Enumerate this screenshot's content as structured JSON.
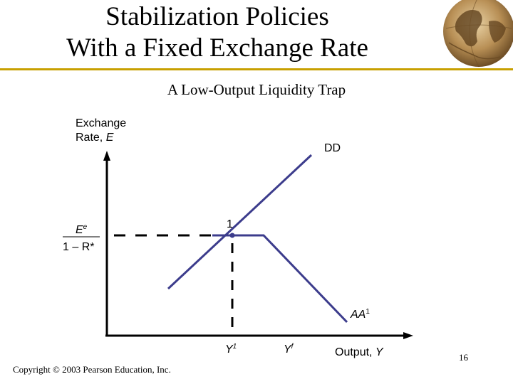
{
  "slide": {
    "title_line1": "Stabilization Policies",
    "title_line2": "With a Fixed Exchange Rate",
    "subtitle": "A Low-Output Liquidity Trap",
    "copyright": "Copyright © 2003 Pearson Education, Inc.",
    "page_number": "16",
    "accent_color": "#c8a000",
    "curve_color": "#3c3c8c"
  },
  "diagram": {
    "y_axis_label_line1": "Exchange",
    "y_axis_label_line2": "Rate, ",
    "y_axis_label_var": "E",
    "x_axis_label": "Output, ",
    "x_axis_label_var": "Y",
    "dd_label": "DD",
    "aa_label": "AA",
    "aa_superscript": "1",
    "point_label": "1",
    "rate_numerator": "E",
    "rate_numerator_sup": "e",
    "rate_denominator": "1 – R*",
    "y1_label": "Y",
    "y1_sup": "1",
    "yf_label": "Y",
    "yf_sup": "f"
  }
}
